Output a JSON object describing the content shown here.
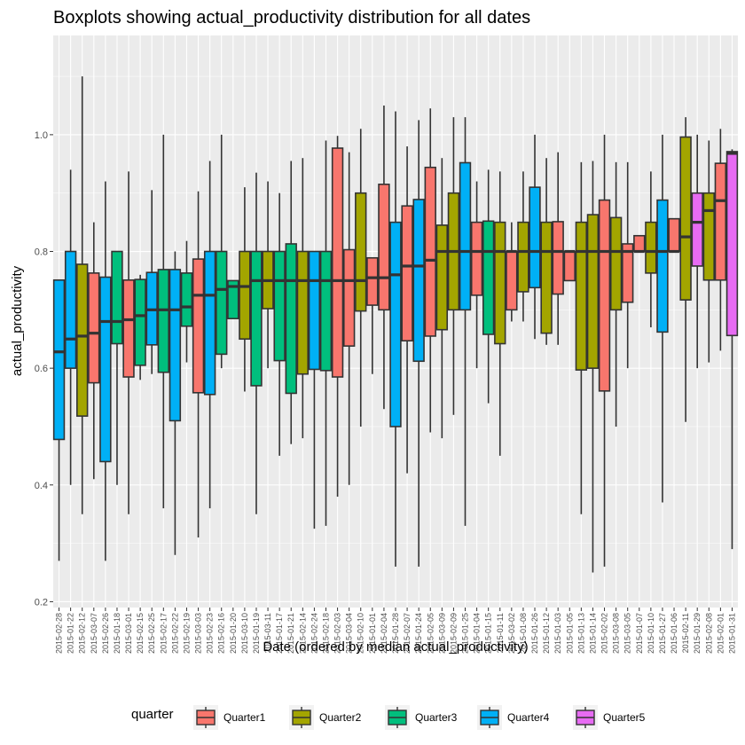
{
  "chart_data": {
    "type": "boxplot",
    "title": "Boxplots showing actual_productivity distribution for all dates",
    "xlabel": "Date (ordered by median actual_productivity)",
    "ylabel": "actual_productivity",
    "ylim": [
      0.19,
      1.17
    ],
    "yticks": [
      0.2,
      0.4,
      0.6,
      0.8,
      1.0
    ],
    "ytick_labels": [
      "0.2",
      "0.4",
      "0.6",
      "0.8",
      "1.0"
    ],
    "legend": {
      "title": "quarter",
      "position": "bottom",
      "entries": [
        "Quarter1",
        "Quarter2",
        "Quarter3",
        "Quarter4",
        "Quarter5"
      ]
    },
    "colors": {
      "Quarter1": "#F8766D",
      "Quarter2": "#A3A500",
      "Quarter3": "#00BF7D",
      "Quarter4": "#00B0F6",
      "Quarter5": "#E76BF3"
    },
    "boxes": [
      {
        "date": "2015-02-28",
        "quarter": "Quarter4",
        "low": 0.27,
        "q1": 0.478,
        "median": 0.628,
        "q3": 0.751,
        "high": 0.751
      },
      {
        "date": "2015-01-22",
        "quarter": "Quarter4",
        "low": 0.4,
        "q1": 0.6,
        "median": 0.65,
        "q3": 0.8,
        "high": 0.94
      },
      {
        "date": "2015-02-12",
        "quarter": "Quarter2",
        "low": 0.35,
        "q1": 0.518,
        "median": 0.655,
        "q3": 0.778,
        "high": 1.1
      },
      {
        "date": "2015-03-07",
        "quarter": "Quarter1",
        "low": 0.41,
        "q1": 0.575,
        "median": 0.66,
        "q3": 0.763,
        "high": 0.85
      },
      {
        "date": "2015-02-26",
        "quarter": "Quarter4",
        "low": 0.27,
        "q1": 0.44,
        "median": 0.68,
        "q3": 0.756,
        "high": 0.92
      },
      {
        "date": "2015-01-18",
        "quarter": "Quarter3",
        "low": 0.4,
        "q1": 0.642,
        "median": 0.68,
        "q3": 0.8,
        "high": 0.8
      },
      {
        "date": "2015-03-01",
        "quarter": "Quarter1",
        "low": 0.35,
        "q1": 0.585,
        "median": 0.683,
        "q3": 0.751,
        "high": 0.937
      },
      {
        "date": "2015-02-15",
        "quarter": "Quarter3",
        "low": 0.58,
        "q1": 0.605,
        "median": 0.69,
        "q3": 0.752,
        "high": 0.76
      },
      {
        "date": "2015-02-25",
        "quarter": "Quarter4",
        "low": 0.59,
        "q1": 0.64,
        "median": 0.7,
        "q3": 0.764,
        "high": 0.905
      },
      {
        "date": "2015-02-17",
        "quarter": "Quarter3",
        "low": 0.36,
        "q1": 0.593,
        "median": 0.7,
        "q3": 0.769,
        "high": 1.0
      },
      {
        "date": "2015-02-22",
        "quarter": "Quarter4",
        "low": 0.28,
        "q1": 0.51,
        "median": 0.7,
        "q3": 0.769,
        "high": 0.8
      },
      {
        "date": "2015-02-19",
        "quarter": "Quarter3",
        "low": 0.61,
        "q1": 0.672,
        "median": 0.705,
        "q3": 0.763,
        "high": 0.818
      },
      {
        "date": "2015-03-03",
        "quarter": "Quarter1",
        "low": 0.31,
        "q1": 0.558,
        "median": 0.725,
        "q3": 0.787,
        "high": 0.903
      },
      {
        "date": "2015-02-23",
        "quarter": "Quarter4",
        "low": 0.36,
        "q1": 0.555,
        "median": 0.725,
        "q3": 0.8,
        "high": 0.955
      },
      {
        "date": "2015-02-16",
        "quarter": "Quarter3",
        "low": 0.6,
        "q1": 0.624,
        "median": 0.735,
        "q3": 0.8,
        "high": 1.0
      },
      {
        "date": "2015-01-20",
        "quarter": "Quarter3",
        "low": 0.685,
        "q1": 0.685,
        "median": 0.74,
        "q3": 0.75,
        "high": 0.75
      },
      {
        "date": "2015-03-10",
        "quarter": "Quarter2",
        "low": 0.56,
        "q1": 0.65,
        "median": 0.74,
        "q3": 0.8,
        "high": 0.91
      },
      {
        "date": "2015-01-19",
        "quarter": "Quarter3",
        "low": 0.35,
        "q1": 0.57,
        "median": 0.75,
        "q3": 0.8,
        "high": 0.935
      },
      {
        "date": "2015-03-11",
        "quarter": "Quarter2",
        "low": 0.6,
        "q1": 0.702,
        "median": 0.75,
        "q3": 0.8,
        "high": 0.92
      },
      {
        "date": "2015-01-17",
        "quarter": "Quarter3",
        "low": 0.45,
        "q1": 0.613,
        "median": 0.75,
        "q3": 0.8,
        "high": 0.9
      },
      {
        "date": "2015-01-21",
        "quarter": "Quarter3",
        "low": 0.47,
        "q1": 0.557,
        "median": 0.75,
        "q3": 0.813,
        "high": 0.955
      },
      {
        "date": "2015-02-14",
        "quarter": "Quarter2",
        "low": 0.48,
        "q1": 0.59,
        "median": 0.75,
        "q3": 0.8,
        "high": 0.96
      },
      {
        "date": "2015-02-24",
        "quarter": "Quarter4",
        "low": 0.325,
        "q1": 0.598,
        "median": 0.75,
        "q3": 0.8,
        "high": 0.8
      },
      {
        "date": "2015-02-18",
        "quarter": "Quarter3",
        "low": 0.33,
        "q1": 0.596,
        "median": 0.75,
        "q3": 0.8,
        "high": 0.99
      },
      {
        "date": "2015-02-03",
        "quarter": "Quarter1",
        "low": 0.38,
        "q1": 0.585,
        "median": 0.75,
        "q3": 0.977,
        "high": 0.998
      },
      {
        "date": "2015-03-04",
        "quarter": "Quarter1",
        "low": 0.4,
        "q1": 0.638,
        "median": 0.75,
        "q3": 0.803,
        "high": 0.97
      },
      {
        "date": "2015-02-10",
        "quarter": "Quarter2",
        "low": 0.5,
        "q1": 0.698,
        "median": 0.75,
        "q3": 0.9,
        "high": 1.01
      },
      {
        "date": "2015-01-01",
        "quarter": "Quarter1",
        "low": 0.59,
        "q1": 0.708,
        "median": 0.755,
        "q3": 0.789,
        "high": 0.789
      },
      {
        "date": "2015-02-04",
        "quarter": "Quarter1",
        "low": 0.53,
        "q1": 0.7,
        "median": 0.755,
        "q3": 0.915,
        "high": 1.05
      },
      {
        "date": "2015-01-28",
        "quarter": "Quarter4",
        "low": 0.26,
        "q1": 0.5,
        "median": 0.76,
        "q3": 0.85,
        "high": 1.04
      },
      {
        "date": "2015-02-07",
        "quarter": "Quarter1",
        "low": 0.42,
        "q1": 0.647,
        "median": 0.775,
        "q3": 0.878,
        "high": 0.98
      },
      {
        "date": "2015-01-24",
        "quarter": "Quarter4",
        "low": 0.26,
        "q1": 0.612,
        "median": 0.775,
        "q3": 0.889,
        "high": 1.025
      },
      {
        "date": "2015-02-05",
        "quarter": "Quarter1",
        "low": 0.49,
        "q1": 0.655,
        "median": 0.785,
        "q3": 0.944,
        "high": 1.045
      },
      {
        "date": "2015-03-09",
        "quarter": "Quarter2",
        "low": 0.48,
        "q1": 0.666,
        "median": 0.8,
        "q3": 0.845,
        "high": 0.96
      },
      {
        "date": "2015-02-09",
        "quarter": "Quarter2",
        "low": 0.52,
        "q1": 0.7,
        "median": 0.8,
        "q3": 0.9,
        "high": 1.03
      },
      {
        "date": "2015-01-25",
        "quarter": "Quarter4",
        "low": 0.33,
        "q1": 0.7,
        "median": 0.8,
        "q3": 0.952,
        "high": 1.03
      },
      {
        "date": "2015-01-04",
        "quarter": "Quarter1",
        "low": 0.6,
        "q1": 0.725,
        "median": 0.8,
        "q3": 0.85,
        "high": 0.92
      },
      {
        "date": "2015-01-15",
        "quarter": "Quarter3",
        "low": 0.54,
        "q1": 0.658,
        "median": 0.8,
        "q3": 0.852,
        "high": 0.94
      },
      {
        "date": "2015-01-11",
        "quarter": "Quarter2",
        "low": 0.45,
        "q1": 0.642,
        "median": 0.8,
        "q3": 0.85,
        "high": 0.937
      },
      {
        "date": "2015-03-02",
        "quarter": "Quarter1",
        "low": 0.68,
        "q1": 0.7,
        "median": 0.8,
        "q3": 0.8,
        "high": 0.85
      },
      {
        "date": "2015-01-08",
        "quarter": "Quarter2",
        "low": 0.68,
        "q1": 0.731,
        "median": 0.8,
        "q3": 0.85,
        "high": 0.937
      },
      {
        "date": "2015-01-26",
        "quarter": "Quarter4",
        "low": 0.65,
        "q1": 0.738,
        "median": 0.8,
        "q3": 0.91,
        "high": 1.0
      },
      {
        "date": "2015-01-12",
        "quarter": "Quarter2",
        "low": 0.64,
        "q1": 0.66,
        "median": 0.8,
        "q3": 0.85,
        "high": 0.96
      },
      {
        "date": "2015-01-03",
        "quarter": "Quarter1",
        "low": 0.64,
        "q1": 0.727,
        "median": 0.8,
        "q3": 0.851,
        "high": 0.97
      },
      {
        "date": "2015-01-05",
        "quarter": "Quarter1",
        "low": 0.75,
        "q1": 0.75,
        "median": 0.8,
        "q3": 0.8,
        "high": 0.8
      },
      {
        "date": "2015-01-13",
        "quarter": "Quarter2",
        "low": 0.35,
        "q1": 0.597,
        "median": 0.8,
        "q3": 0.85,
        "high": 0.953
      },
      {
        "date": "2015-01-14",
        "quarter": "Quarter2",
        "low": 0.25,
        "q1": 0.6,
        "median": 0.8,
        "q3": 0.863,
        "high": 0.955
      },
      {
        "date": "2015-02-02",
        "quarter": "Quarter1",
        "low": 0.26,
        "q1": 0.561,
        "median": 0.8,
        "q3": 0.888,
        "high": 1.0
      },
      {
        "date": "2015-03-08",
        "quarter": "Quarter2",
        "low": 0.5,
        "q1": 0.7,
        "median": 0.8,
        "q3": 0.858,
        "high": 0.953
      },
      {
        "date": "2015-03-05",
        "quarter": "Quarter1",
        "low": 0.6,
        "q1": 0.713,
        "median": 0.8,
        "q3": 0.813,
        "high": 0.953
      },
      {
        "date": "2015-01-07",
        "quarter": "Quarter1",
        "low": 0.8,
        "q1": 0.8,
        "median": 0.8,
        "q3": 0.827,
        "high": 0.827
      },
      {
        "date": "2015-01-10",
        "quarter": "Quarter2",
        "low": 0.67,
        "q1": 0.763,
        "median": 0.8,
        "q3": 0.85,
        "high": 0.937
      },
      {
        "date": "2015-01-27",
        "quarter": "Quarter4",
        "low": 0.37,
        "q1": 0.662,
        "median": 0.8,
        "q3": 0.888,
        "high": 1.0
      },
      {
        "date": "2015-01-06",
        "quarter": "Quarter1",
        "low": 0.8,
        "q1": 0.8,
        "median": 0.8,
        "q3": 0.856,
        "high": 0.856
      },
      {
        "date": "2015-02-11",
        "quarter": "Quarter2",
        "low": 0.508,
        "q1": 0.717,
        "median": 0.825,
        "q3": 0.996,
        "high": 1.03
      },
      {
        "date": "2015-01-29",
        "quarter": "Quarter5",
        "low": 0.6,
        "q1": 0.775,
        "median": 0.85,
        "q3": 0.9,
        "high": 1.0
      },
      {
        "date": "2015-02-08",
        "quarter": "Quarter2",
        "low": 0.61,
        "q1": 0.751,
        "median": 0.87,
        "q3": 0.9,
        "high": 0.99
      },
      {
        "date": "2015-02-01",
        "quarter": "Quarter1",
        "low": 0.63,
        "q1": 0.751,
        "median": 0.887,
        "q3": 0.951,
        "high": 1.01
      },
      {
        "date": "2015-01-31",
        "quarter": "Quarter5",
        "low": 0.29,
        "q1": 0.656,
        "median": 0.968,
        "q3": 0.971,
        "high": 0.975
      }
    ]
  }
}
